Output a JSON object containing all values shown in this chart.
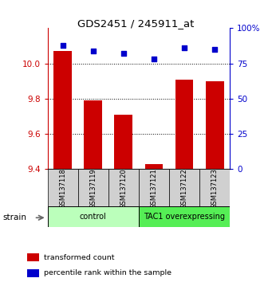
{
  "title": "GDS2451 / 245911_at",
  "samples": [
    "GSM137118",
    "GSM137119",
    "GSM137120",
    "GSM137121",
    "GSM137122",
    "GSM137123"
  ],
  "red_values": [
    10.07,
    9.79,
    9.71,
    9.43,
    9.91,
    9.9
  ],
  "blue_values": [
    88,
    84,
    82,
    78,
    86,
    85
  ],
  "ylim_left": [
    9.4,
    10.2
  ],
  "ylim_right": [
    0,
    100
  ],
  "yticks_left": [
    9.4,
    9.6,
    9.8,
    10.0
  ],
  "yticks_right": [
    0,
    25,
    50,
    75,
    100
  ],
  "groups": [
    {
      "label": "control",
      "start": 0,
      "end": 3,
      "color": "#bbffbb"
    },
    {
      "label": "TAC1 overexpressing",
      "start": 3,
      "end": 6,
      "color": "#55ee55"
    }
  ],
  "bar_color": "#cc0000",
  "dot_color": "#0000cc",
  "bar_width": 0.6,
  "left_axis_color": "#cc0000",
  "right_axis_color": "#0000cc",
  "legend_items": [
    {
      "color": "#cc0000",
      "label": "transformed count"
    },
    {
      "color": "#0000cc",
      "label": "percentile rank within the sample"
    }
  ],
  "strain_label": "strain",
  "bg_color": "#ffffff"
}
